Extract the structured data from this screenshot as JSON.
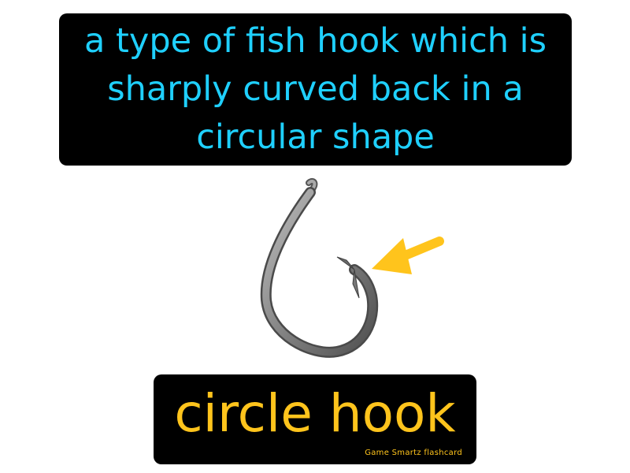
{
  "definition": {
    "text": "a type of fish hook which is sharply curved back in a circular shape"
  },
  "term": {
    "text": "circle hook",
    "credit": "Game Smartz flashcard"
  },
  "illustration": {
    "hook_icon": "circle-fish-hook-icon",
    "arrow_icon": "arrow-pointing-left-icon",
    "arrow_color": "#ffc41c",
    "hook_color": "#7a7a7a"
  },
  "colors": {
    "background": "#ffffff",
    "box": "#000000",
    "definition_text": "#1fd0ff",
    "term_text": "#ffc41c"
  }
}
